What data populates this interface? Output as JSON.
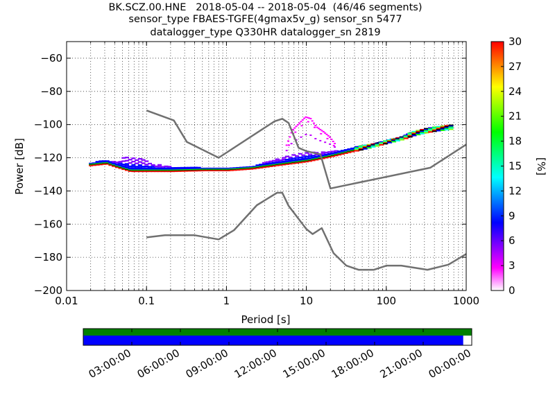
{
  "chart_data": [
    {
      "type": "heatmap",
      "title_lines": [
        "BK.SCZ.00.HNE   2018-05-04 -- 2018-05-04  (46/46 segments)",
        "sensor_type FBAES-TGFE(4gmax5v_g) sensor_sn 5477",
        "datalogger_type Q330HR datalogger_sn 2819"
      ],
      "xlabel": "Period [s]",
      "ylabel": "Power [dB]",
      "x_scale": "log",
      "xlim": [
        0.01,
        1000
      ],
      "ylim": [
        -200,
        -50
      ],
      "x_tick_labels": [
        "0.01",
        "0.1",
        "1",
        "10",
        "100",
        "1000"
      ],
      "y_ticks": [
        -60,
        -80,
        -100,
        -120,
        -140,
        -160,
        -180,
        -200
      ],
      "y_tick_labels": [
        "−60",
        "−80",
        "−100",
        "−120",
        "−140",
        "−160",
        "−180",
        "−200"
      ],
      "grid": true,
      "noise_models": [
        {
          "name": "NHNM",
          "points": [
            [
              0.1,
              -91.5
            ],
            [
              0.22,
              -97.5
            ],
            [
              0.32,
              -110.5
            ],
            [
              0.8,
              -120
            ],
            [
              4.0,
              -98
            ],
            [
              5.0,
              -96.5
            ],
            [
              6.0,
              -99
            ],
            [
              8.0,
              -114
            ],
            [
              10.0,
              -116
            ],
            [
              15.0,
              -118
            ],
            [
              20.0,
              -138.5
            ],
            [
              354.8,
              -126
            ],
            [
              1000,
              -112
            ]
          ]
        },
        {
          "name": "NLNM",
          "points": [
            [
              0.1,
              -168
            ],
            [
              0.17,
              -166.7
            ],
            [
              0.4,
              -166.7
            ],
            [
              0.8,
              -169.2
            ],
            [
              1.24,
              -163.7
            ],
            [
              2.4,
              -148.6
            ],
            [
              4.3,
              -141.1
            ],
            [
              5.0,
              -141.1
            ],
            [
              6.0,
              -149
            ],
            [
              10.0,
              -163
            ],
            [
              12.0,
              -166
            ],
            [
              15.6,
              -162.4
            ],
            [
              21.9,
              -177.5
            ],
            [
              31.6,
              -185
            ],
            [
              45.0,
              -187.5
            ],
            [
              70.0,
              -187.5
            ],
            [
              101.0,
              -185
            ],
            [
              154.0,
              -185
            ],
            [
              328.0,
              -187.5
            ],
            [
              600.0,
              -184.4
            ],
            [
              1000.0,
              -178
            ]
          ]
        }
      ],
      "psd_curves": [
        {
          "name": "core",
          "points": [
            [
              0.019,
              -125
            ],
            [
              0.03,
              -124
            ],
            [
              0.04,
              -126
            ],
            [
              0.06,
              -128.5
            ],
            [
              0.1,
              -128.5
            ],
            [
              0.2,
              -128.5
            ],
            [
              0.5,
              -128
            ],
            [
              1,
              -128
            ],
            [
              2,
              -127
            ],
            [
              4,
              -125
            ],
            [
              7,
              -123.5
            ],
            [
              10,
              -122.5
            ],
            [
              20,
              -119.5
            ],
            [
              40,
              -116
            ],
            [
              70,
              -113
            ],
            [
              100,
              -111
            ],
            [
              150,
              -109
            ],
            [
              200,
              -107
            ],
            [
              300,
              -105
            ],
            [
              400,
              -104
            ],
            [
              600,
              -103
            ]
          ]
        },
        {
          "name": "upper",
          "points": [
            [
              0.019,
              -123
            ],
            [
              0.025,
              -121
            ],
            [
              0.04,
              -122
            ],
            [
              0.05,
              -119
            ],
            [
              0.08,
              -120
            ],
            [
              0.12,
              -123
            ],
            [
              0.2,
              -125
            ],
            [
              0.4,
              -125
            ],
            [
              0.6,
              -127
            ],
            [
              1,
              -127.5
            ],
            [
              2,
              -125
            ],
            [
              3,
              -122
            ],
            [
              5,
              -119
            ],
            [
              7,
              -117
            ],
            [
              10,
              -116
            ],
            [
              15,
              -116
            ],
            [
              25,
              -115
            ],
            [
              40,
              -113
            ],
            [
              70,
              -111
            ],
            [
              100,
              -109
            ],
            [
              150,
              -107
            ],
            [
              200,
              -104
            ],
            [
              300,
              -102
            ],
            [
              400,
              -101
            ],
            [
              600,
              -100
            ]
          ]
        },
        {
          "name": "spike",
          "points": [
            [
              5.5,
              -112
            ],
            [
              6.5,
              -103
            ],
            [
              7.5,
              -100
            ],
            [
              9.5,
              -95
            ],
            [
              11,
              -96
            ],
            [
              13,
              -101
            ],
            [
              16,
              -104
            ],
            [
              19,
              -107
            ],
            [
              22,
              -111
            ]
          ]
        }
      ],
      "color_bar": {
        "label": "[%]",
        "range": [
          0,
          30
        ],
        "ticks": [
          0,
          3,
          6,
          9,
          12,
          15,
          18,
          21,
          24,
          27,
          30
        ],
        "colors": [
          "#ffffff",
          "#ff00ff",
          "#8000ff",
          "#0000ff",
          "#0080ff",
          "#00ffff",
          "#00ff80",
          "#00ff00",
          "#80ff00",
          "#ffff00",
          "#ff8000",
          "#ff0000"
        ]
      },
      "noise_model_color": "#707070"
    },
    {
      "type": "bar",
      "name": "data availability",
      "time_labels": [
        "03:00:00",
        "06:00:00",
        "09:00:00",
        "12:00:00",
        "15:00:00",
        "18:00:00",
        "21:00:00",
        "00:00:00"
      ],
      "green_fraction": 1.0,
      "blue_fraction": 0.978,
      "colors": {
        "green": "#008000",
        "blue": "#0000ff"
      }
    }
  ]
}
